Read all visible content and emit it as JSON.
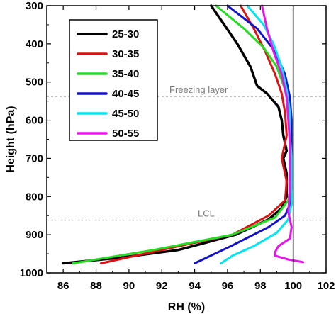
{
  "chart_data": {
    "type": "line",
    "title": "",
    "xlabel": "RH (%)",
    "ylabel": "Height (hPa)",
    "xlim": [
      85,
      102
    ],
    "ylim": [
      1000,
      300
    ],
    "y_inverted": true,
    "xticks": [
      86,
      88,
      90,
      92,
      94,
      96,
      98,
      100,
      102
    ],
    "yticks": [
      300,
      400,
      500,
      600,
      700,
      800,
      900,
      1000
    ],
    "grid": false,
    "legend_position": "top-left",
    "reference_lines": [
      {
        "label": "Freezing layer",
        "y": 538,
        "style": "dashed",
        "color": "#9a9a9a"
      },
      {
        "label": "LCL",
        "y": 862,
        "style": "dashed",
        "color": "#9a9a9a"
      }
    ],
    "vertical_line": {
      "x": 100,
      "color": "#000000"
    },
    "series": [
      {
        "name": "25-30",
        "color": "#000000",
        "points": [
          [
            95.0,
            300
          ],
          [
            95.8,
            350
          ],
          [
            96.6,
            400
          ],
          [
            97.4,
            460
          ],
          [
            97.8,
            510
          ],
          [
            98.4,
            530
          ],
          [
            98.7,
            545
          ],
          [
            99.1,
            565
          ],
          [
            99.3,
            600
          ],
          [
            99.4,
            640
          ],
          [
            99.6,
            680
          ],
          [
            99.4,
            700
          ],
          [
            99.6,
            740
          ],
          [
            99.6,
            800
          ],
          [
            99.3,
            830
          ],
          [
            98.5,
            860
          ],
          [
            96.5,
            900
          ],
          [
            93.0,
            940
          ],
          [
            89.5,
            960
          ],
          [
            86.0,
            975
          ]
        ]
      },
      {
        "name": "30-35",
        "color": "#dd1111",
        "points": [
          [
            96.8,
            300
          ],
          [
            97.6,
            360
          ],
          [
            98.3,
            420
          ],
          [
            98.9,
            480
          ],
          [
            99.3,
            530
          ],
          [
            99.5,
            580
          ],
          [
            99.6,
            640
          ],
          [
            99.3,
            700
          ],
          [
            99.6,
            760
          ],
          [
            99.5,
            810
          ],
          [
            98.5,
            850
          ],
          [
            96.3,
            900
          ],
          [
            92.5,
            935
          ],
          [
            88.3,
            975
          ]
        ]
      },
      {
        "name": "35-40",
        "color": "#22dd22",
        "points": [
          [
            95.3,
            300
          ],
          [
            97.0,
            360
          ],
          [
            98.2,
            410
          ],
          [
            99.0,
            460
          ],
          [
            99.5,
            520
          ],
          [
            99.8,
            580
          ],
          [
            99.8,
            640
          ],
          [
            99.9,
            700
          ],
          [
            99.9,
            760
          ],
          [
            99.7,
            810
          ],
          [
            98.9,
            855
          ],
          [
            96.3,
            900
          ],
          [
            91.5,
            940
          ],
          [
            86.6,
            975
          ]
        ]
      },
      {
        "name": "40-45",
        "color": "#1111cc",
        "points": [
          [
            96.0,
            300
          ],
          [
            97.8,
            360
          ],
          [
            98.9,
            420
          ],
          [
            99.5,
            480
          ],
          [
            99.8,
            540
          ],
          [
            99.9,
            600
          ],
          [
            99.9,
            660
          ],
          [
            99.9,
            720
          ],
          [
            99.9,
            780
          ],
          [
            99.8,
            820
          ],
          [
            99.5,
            850
          ],
          [
            98.5,
            880
          ],
          [
            96.2,
            930
          ],
          [
            94.0,
            975
          ]
        ]
      },
      {
        "name": "45-50",
        "color": "#00e5ee",
        "points": [
          [
            97.2,
            300
          ],
          [
            98.2,
            350
          ],
          [
            98.8,
            400
          ],
          [
            99.3,
            460
          ],
          [
            99.6,
            520
          ],
          [
            99.8,
            580
          ],
          [
            99.8,
            640
          ],
          [
            99.9,
            700
          ],
          [
            99.9,
            760
          ],
          [
            99.9,
            820
          ],
          [
            99.7,
            860
          ],
          [
            99.0,
            895
          ],
          [
            97.6,
            930
          ],
          [
            96.3,
            955
          ],
          [
            95.6,
            975
          ]
        ]
      },
      {
        "name": "50-55",
        "color": "#ee11ee",
        "points": [
          [
            98.1,
            300
          ],
          [
            98.4,
            360
          ],
          [
            98.8,
            420
          ],
          [
            99.3,
            480
          ],
          [
            99.6,
            540
          ],
          [
            99.7,
            600
          ],
          [
            99.8,
            660
          ],
          [
            99.8,
            720
          ],
          [
            99.8,
            780
          ],
          [
            99.7,
            840
          ],
          [
            99.9,
            880
          ],
          [
            99.8,
            910
          ],
          [
            99.1,
            930
          ],
          [
            98.9,
            945
          ],
          [
            98.9,
            955
          ],
          [
            99.7,
            965
          ],
          [
            100.6,
            972
          ]
        ]
      }
    ]
  }
}
